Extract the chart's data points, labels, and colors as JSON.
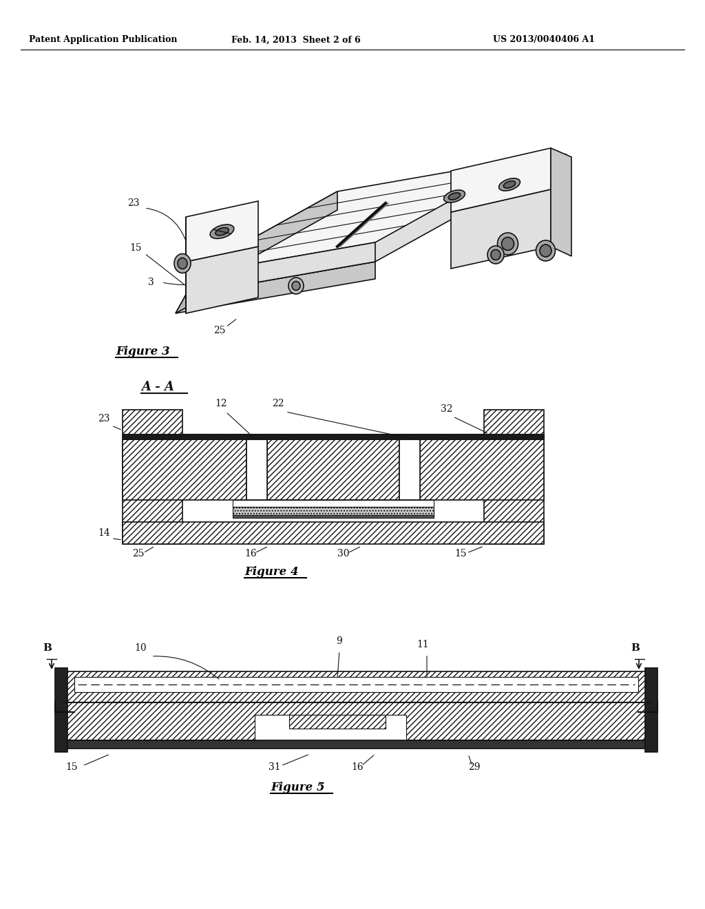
{
  "header_left": "Patent Application Publication",
  "header_center": "Feb. 14, 2013  Sheet 2 of 6",
  "header_right": "US 2013/0040406 A1",
  "bg_color": "#ffffff",
  "line_color": "#000000",
  "fig3_label": "Figure 3",
  "fig4_label": "Figure 4",
  "fig5_label": "Figure 5"
}
